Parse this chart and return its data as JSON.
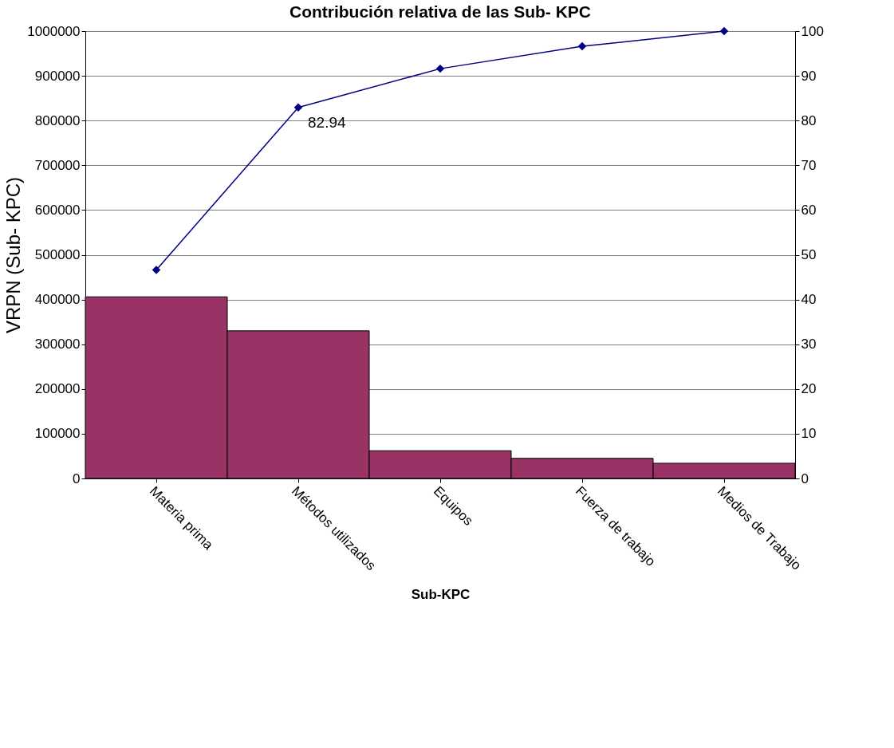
{
  "chart_data": {
    "type": "bar",
    "title": "Contribución relativa de las Sub- KPC",
    "xlabel": "Sub-KPC",
    "ylabel": "VRPN (Sub- KPC)",
    "categories": [
      "Materia prima",
      "Métodos utilizados",
      "Equipos",
      "Fuerza de trabajo",
      "Medios de Trabajo"
    ],
    "series": [
      {
        "color": "#993366",
        "values": [
          406000,
          330000,
          62000,
          45000,
          34000
        ]
      },
      {
        "type": "line",
        "axis": "y2",
        "color": "#000080",
        "values": [
          46.6,
          82.94,
          91.6,
          96.6,
          100
        ],
        "value_labels": [
          null,
          "82.94",
          null,
          null,
          null
        ]
      }
    ],
    "ylim": [
      0,
      1000000
    ],
    "yticks": [
      0,
      100000,
      200000,
      300000,
      400000,
      500000,
      600000,
      700000,
      800000,
      900000,
      1000000
    ],
    "y2lim": [
      0,
      100
    ],
    "y2ticks": [
      0,
      10,
      20,
      30,
      40,
      50,
      60,
      70,
      80,
      90,
      100
    ],
    "grid": "y",
    "marker": "diamond"
  }
}
